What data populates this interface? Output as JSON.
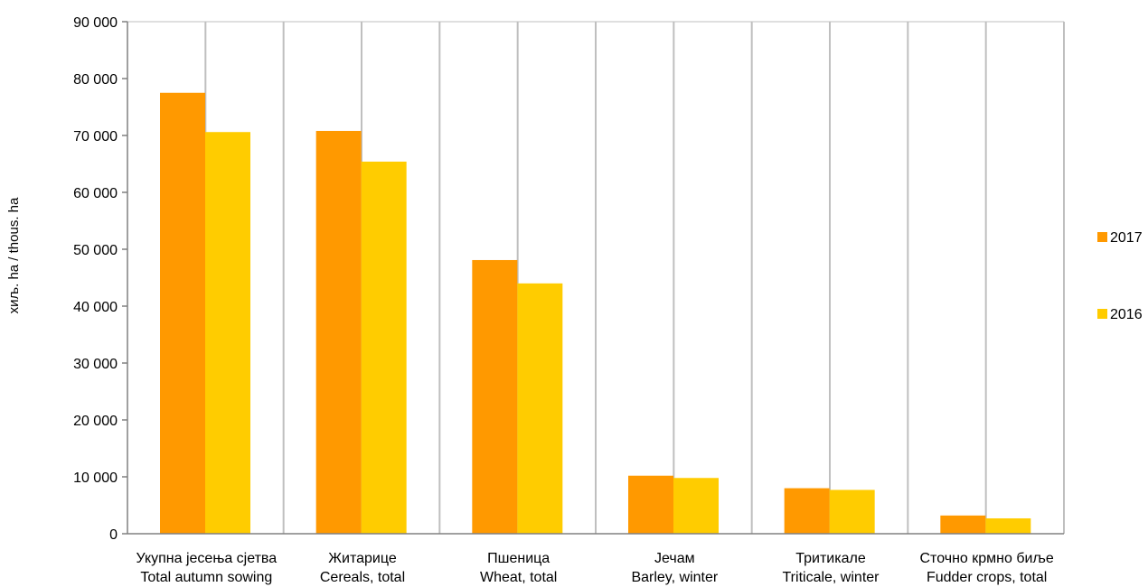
{
  "chart_data": {
    "type": "bar",
    "ylabel": "хиљ. ha / thous. ha",
    "ylim": [
      0,
      90000
    ],
    "yticks": [
      0,
      10000,
      20000,
      30000,
      40000,
      50000,
      60000,
      70000,
      80000,
      90000
    ],
    "ytick_labels": [
      "0",
      "10 000",
      "20 000",
      "30 000",
      "40 000",
      "50 000",
      "60 000",
      "70 000",
      "80 000",
      "90 000"
    ],
    "categories": [
      [
        "Укупна јесења сјетва",
        "Total autumn sowing"
      ],
      [
        "Житарице",
        "Cereals, total"
      ],
      [
        "Пшеница",
        "Wheat, total"
      ],
      [
        "Јечам",
        "Barley, winter"
      ],
      [
        "Тритикале",
        "Triticale, winter"
      ],
      [
        "Сточно крмно биље",
        "Fudder crops, total"
      ]
    ],
    "series": [
      {
        "name": "2017",
        "color": "#FF9900",
        "values": [
          77500,
          70800,
          48100,
          10200,
          8000,
          3200
        ]
      },
      {
        "name": "2016",
        "color": "#FFCC00",
        "values": [
          70600,
          65400,
          44000,
          9800,
          7700,
          2700
        ]
      }
    ],
    "grid": true,
    "legend_position": "right"
  }
}
